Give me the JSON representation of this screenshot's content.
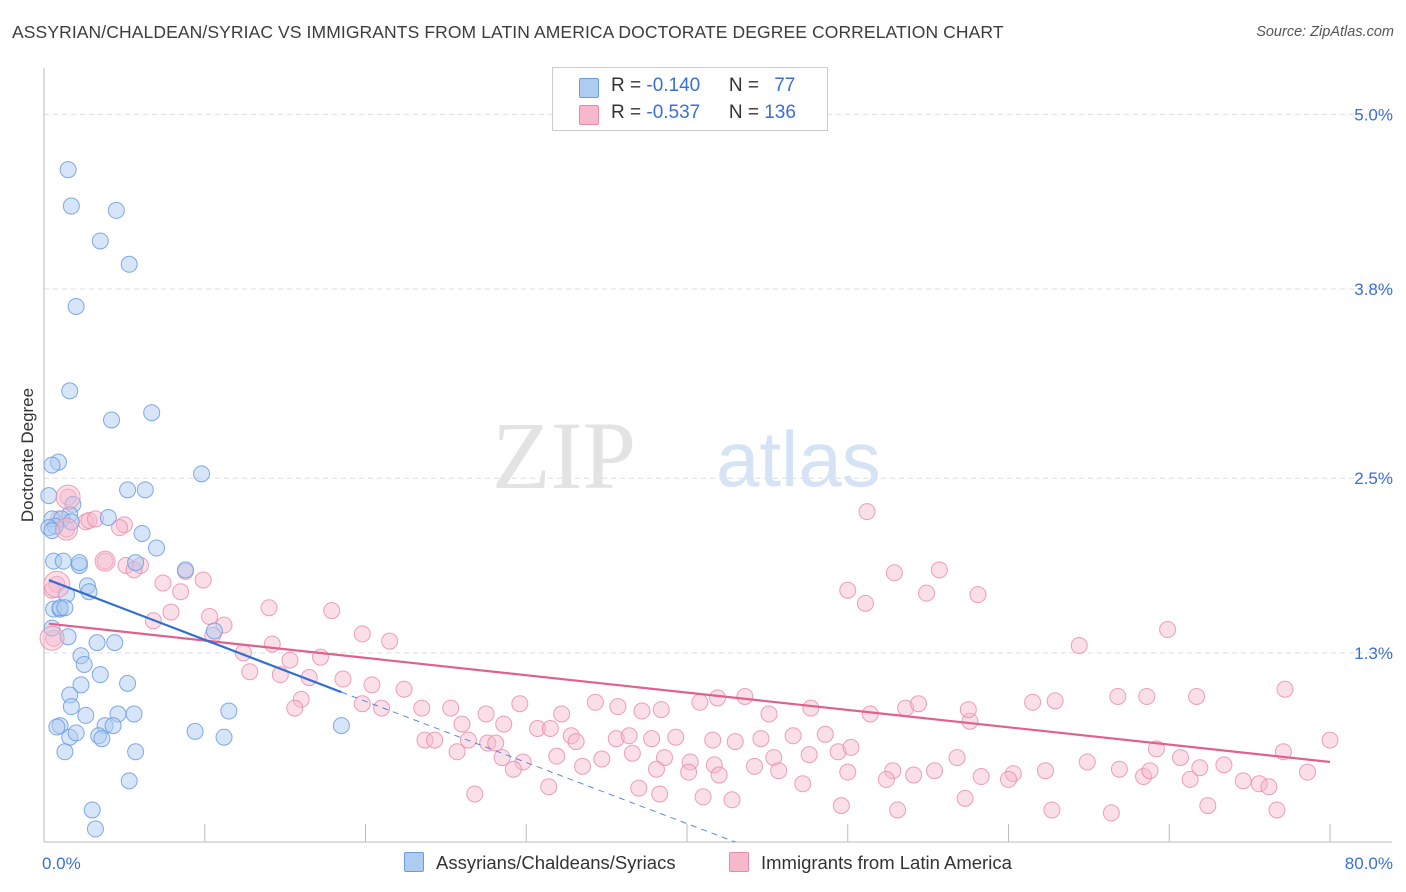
{
  "title": "ASSYRIAN/CHALDEAN/SYRIAC VS IMMIGRANTS FROM LATIN AMERICA DOCTORATE DEGREE CORRELATION CHART",
  "source": "Source: ZipAtlas.com",
  "watermark": {
    "zip": "ZIP",
    "atlas": "atlas"
  },
  "legend": {
    "rows": [
      {
        "r_label": "R = ",
        "r_value": "-0.140",
        "n_label": "N = ",
        "n_value": "77",
        "color": "#aecbf2"
      },
      {
        "r_label": "R = ",
        "r_value": "-0.537",
        "n_label": "N = ",
        "n_value": "136",
        "color": "#f7b8cc"
      }
    ]
  },
  "colors": {
    "blue_fill": "#aecbf2",
    "blue_stroke": "#6b9be0",
    "blue_line": "#2f6fd4",
    "pink_fill": "#f7b8cc",
    "pink_stroke": "#e889a8",
    "pink_line": "#e0608e",
    "axis_text": "#3a6fd8",
    "grid": "#dddddd"
  },
  "chart_data": {
    "type": "scatter",
    "title": "ASSYRIAN/CHALDEAN/SYRIAC VS IMMIGRANTS FROM LATIN AMERICA DOCTORATE DEGREE CORRELATION CHART",
    "xlabel": "",
    "ylabel": "Doctorate Degree",
    "xlim": [
      0,
      80
    ],
    "ylim": [
      0,
      5.25
    ],
    "x_tick_labels": [
      "0.0%",
      "80.0%"
    ],
    "y_ticks": [
      1.3,
      2.5,
      3.8,
      5.0
    ],
    "y_tick_labels": [
      "1.3%",
      "2.5%",
      "3.8%",
      "5.0%"
    ],
    "grid": true,
    "legend_position": "bottom",
    "series": [
      {
        "name": "Assyrians/Chaldeans/Syriacs",
        "trend": {
          "x": [
            0.3,
            18.5
          ],
          "y": [
            1.8,
            1.03
          ],
          "extended_x": [
            18.5,
            43.0
          ],
          "extended_y": [
            1.03,
            0.0
          ]
        },
        "points": [
          [
            1.5,
            4.62
          ],
          [
            1.7,
            4.37
          ],
          [
            4.5,
            4.34
          ],
          [
            3.5,
            4.13
          ],
          [
            5.3,
            3.97
          ],
          [
            2.0,
            3.68
          ],
          [
            1.6,
            3.1
          ],
          [
            6.7,
            2.95
          ],
          [
            4.2,
            2.9
          ],
          [
            0.9,
            2.61
          ],
          [
            9.8,
            2.53
          ],
          [
            0.5,
            2.59
          ],
          [
            5.2,
            2.42
          ],
          [
            6.3,
            2.42
          ],
          [
            0.3,
            2.38
          ],
          [
            1.8,
            2.32
          ],
          [
            4.0,
            2.23
          ],
          [
            1.6,
            2.25
          ],
          [
            0.5,
            2.22
          ],
          [
            1.1,
            2.22
          ],
          [
            1.7,
            2.2
          ],
          [
            0.7,
            2.17
          ],
          [
            0.3,
            2.16
          ],
          [
            0.5,
            2.14
          ],
          [
            6.1,
            2.12
          ],
          [
            7.0,
            2.02
          ],
          [
            0.6,
            1.93
          ],
          [
            1.2,
            1.93
          ],
          [
            2.2,
            1.9
          ],
          [
            2.2,
            1.92
          ],
          [
            5.7,
            1.92
          ],
          [
            8.8,
            1.87
          ],
          [
            2.7,
            1.76
          ],
          [
            2.8,
            1.72
          ],
          [
            1.4,
            1.7
          ],
          [
            0.6,
            1.6
          ],
          [
            1.0,
            1.6
          ],
          [
            1.0,
            1.61
          ],
          [
            1.3,
            1.61
          ],
          [
            0.5,
            1.47
          ],
          [
            1.5,
            1.41
          ],
          [
            3.3,
            1.37
          ],
          [
            4.4,
            1.37
          ],
          [
            10.6,
            1.45
          ],
          [
            2.3,
            1.28
          ],
          [
            2.5,
            1.22
          ],
          [
            2.3,
            1.08
          ],
          [
            3.5,
            1.15
          ],
          [
            5.2,
            1.09
          ],
          [
            1.6,
            1.01
          ],
          [
            1.7,
            0.93
          ],
          [
            2.6,
            0.87
          ],
          [
            4.6,
            0.88
          ],
          [
            5.6,
            0.88
          ],
          [
            1.0,
            0.8
          ],
          [
            0.8,
            0.79
          ],
          [
            3.8,
            0.8
          ],
          [
            4.3,
            0.8
          ],
          [
            9.4,
            0.76
          ],
          [
            11.5,
            0.9
          ],
          [
            18.5,
            0.8
          ],
          [
            1.6,
            0.72
          ],
          [
            2.0,
            0.75
          ],
          [
            3.4,
            0.73
          ],
          [
            3.6,
            0.71
          ],
          [
            11.2,
            0.72
          ],
          [
            1.3,
            0.62
          ],
          [
            5.7,
            0.62
          ],
          [
            5.3,
            0.42
          ],
          [
            3.0,
            0.22
          ],
          [
            3.2,
            0.09
          ]
        ]
      },
      {
        "name": "Immigrants from Latin America",
        "trend": {
          "x": [
            0.3,
            80.0
          ],
          "y": [
            1.5,
            0.55
          ]
        },
        "points": [
          [
            1.5,
            2.37
          ],
          [
            0.9,
            2.22
          ],
          [
            2.6,
            2.2
          ],
          [
            2.8,
            2.21
          ],
          [
            3.2,
            2.22
          ],
          [
            5.0,
            2.18
          ],
          [
            4.7,
            2.16
          ],
          [
            1.4,
            2.15
          ],
          [
            3.8,
            1.93
          ],
          [
            5.1,
            1.9
          ],
          [
            6.0,
            1.9
          ],
          [
            5.6,
            1.87
          ],
          [
            8.8,
            1.86
          ],
          [
            9.9,
            1.8
          ],
          [
            7.4,
            1.78
          ],
          [
            8.5,
            1.72
          ],
          [
            0.8,
            1.77
          ],
          [
            0.5,
            1.73
          ],
          [
            7.9,
            1.58
          ],
          [
            10.3,
            1.55
          ],
          [
            14.0,
            1.61
          ],
          [
            17.9,
            1.59
          ],
          [
            11.2,
            1.49
          ],
          [
            6.8,
            1.52
          ],
          [
            10.5,
            1.42
          ],
          [
            19.8,
            1.43
          ],
          [
            21.5,
            1.38
          ],
          [
            14.2,
            1.36
          ],
          [
            0.6,
            1.4
          ],
          [
            12.4,
            1.3
          ],
          [
            15.3,
            1.25
          ],
          [
            17.2,
            1.27
          ],
          [
            12.8,
            1.17
          ],
          [
            14.7,
            1.15
          ],
          [
            16.5,
            1.13
          ],
          [
            18.6,
            1.12
          ],
          [
            20.4,
            1.08
          ],
          [
            22.4,
            1.05
          ],
          [
            16.0,
            0.98
          ],
          [
            15.6,
            0.92
          ],
          [
            19.8,
            0.95
          ],
          [
            21.0,
            0.92
          ],
          [
            23.5,
            0.92
          ],
          [
            25.3,
            0.92
          ],
          [
            27.5,
            0.88
          ],
          [
            29.6,
            0.95
          ],
          [
            32.2,
            0.88
          ],
          [
            34.3,
            0.96
          ],
          [
            35.7,
            0.93
          ],
          [
            37.2,
            0.9
          ],
          [
            38.4,
            0.91
          ],
          [
            40.8,
            0.96
          ],
          [
            41.9,
            0.99
          ],
          [
            43.6,
            1.0
          ],
          [
            45.1,
            0.88
          ],
          [
            26.0,
            0.81
          ],
          [
            28.6,
            0.81
          ],
          [
            30.7,
            0.78
          ],
          [
            31.5,
            0.78
          ],
          [
            32.8,
            0.73
          ],
          [
            33.1,
            0.69
          ],
          [
            35.6,
            0.71
          ],
          [
            36.4,
            0.73
          ],
          [
            37.8,
            0.71
          ],
          [
            39.3,
            0.72
          ],
          [
            41.6,
            0.7
          ],
          [
            43.0,
            0.69
          ],
          [
            44.6,
            0.71
          ],
          [
            46.6,
            0.73
          ],
          [
            48.6,
            0.74
          ],
          [
            23.7,
            0.7
          ],
          [
            24.3,
            0.7
          ],
          [
            26.4,
            0.7
          ],
          [
            27.6,
            0.68
          ],
          [
            28.1,
            0.68
          ],
          [
            25.7,
            0.62
          ],
          [
            28.5,
            0.58
          ],
          [
            29.8,
            0.55
          ],
          [
            31.9,
            0.59
          ],
          [
            34.7,
            0.57
          ],
          [
            36.6,
            0.61
          ],
          [
            38.6,
            0.58
          ],
          [
            40.2,
            0.55
          ],
          [
            41.7,
            0.53
          ],
          [
            44.2,
            0.52
          ],
          [
            45.4,
            0.58
          ],
          [
            47.6,
            0.6
          ],
          [
            49.4,
            0.62
          ],
          [
            50.2,
            0.65
          ],
          [
            29.2,
            0.5
          ],
          [
            33.5,
            0.52
          ],
          [
            38.1,
            0.5
          ],
          [
            40.1,
            0.48
          ],
          [
            42.0,
            0.46
          ],
          [
            45.7,
            0.49
          ],
          [
            50.0,
            0.48
          ],
          [
            52.8,
            0.49
          ],
          [
            56.8,
            0.58
          ],
          [
            58.3,
            0.45
          ],
          [
            62.3,
            0.49
          ],
          [
            64.9,
            0.55
          ],
          [
            66.9,
            0.5
          ],
          [
            68.4,
            0.45
          ],
          [
            71.3,
            0.43
          ],
          [
            75.6,
            0.4
          ],
          [
            74.6,
            0.42
          ],
          [
            76.2,
            0.38
          ],
          [
            78.6,
            0.48
          ],
          [
            38.3,
            0.33
          ],
          [
            41.0,
            0.31
          ],
          [
            42.8,
            0.29
          ],
          [
            49.6,
            0.25
          ],
          [
            53.1,
            0.22
          ],
          [
            57.3,
            0.3
          ],
          [
            62.7,
            0.22
          ],
          [
            66.4,
            0.2
          ],
          [
            72.4,
            0.25
          ],
          [
            76.7,
            0.22
          ],
          [
            26.8,
            0.33
          ],
          [
            31.4,
            0.38
          ],
          [
            37.0,
            0.37
          ],
          [
            47.2,
            0.4
          ],
          [
            52.4,
            0.43
          ],
          [
            54.1,
            0.46
          ],
          [
            55.4,
            0.49
          ],
          [
            60.3,
            0.47
          ],
          [
            60.0,
            0.43
          ],
          [
            68.8,
            0.49
          ],
          [
            70.7,
            0.58
          ],
          [
            71.9,
            0.51
          ],
          [
            73.4,
            0.53
          ],
          [
            77.1,
            0.62
          ],
          [
            80.0,
            0.7
          ],
          [
            69.2,
            0.64
          ],
          [
            57.6,
            0.83
          ],
          [
            51.4,
            0.88
          ],
          [
            47.7,
            0.92
          ],
          [
            53.6,
            0.92
          ],
          [
            54.4,
            0.95
          ],
          [
            61.5,
            0.96
          ],
          [
            62.9,
            0.97
          ],
          [
            57.5,
            0.91
          ],
          [
            66.8,
            1.0
          ],
          [
            68.6,
            1.0
          ],
          [
            71.7,
            1.0
          ],
          [
            77.2,
            1.05
          ],
          [
            64.4,
            1.35
          ],
          [
            69.9,
            1.46
          ],
          [
            51.1,
            1.64
          ],
          [
            58.1,
            1.7
          ],
          [
            54.9,
            1.71
          ],
          [
            50.0,
            1.73
          ],
          [
            52.9,
            1.85
          ],
          [
            51.2,
            2.27
          ],
          [
            55.7,
            1.87
          ]
        ]
      }
    ]
  },
  "bottom_legend": [
    {
      "label": "Assyrians/Chaldeans/Syriacs",
      "color": "#aecbf2"
    },
    {
      "label": "Immigrants from Latin America",
      "color": "#f7b8cc"
    }
  ]
}
